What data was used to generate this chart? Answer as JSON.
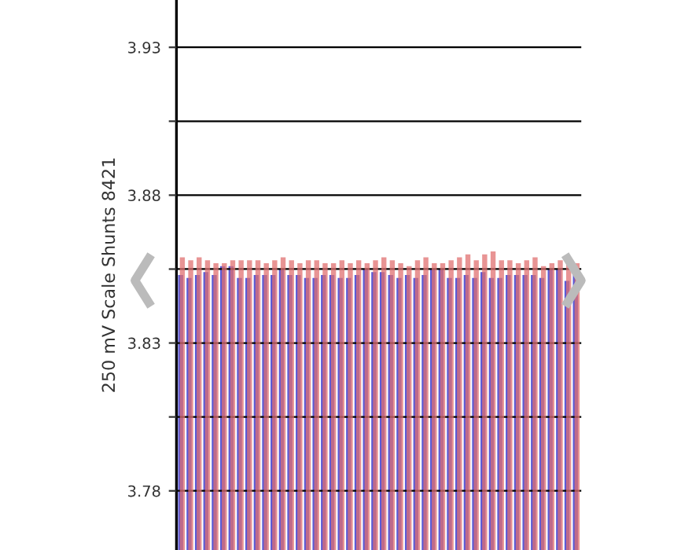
{
  "chart_data": {
    "type": "bar",
    "ylabel": "250 mV Scale Shunts 8421",
    "categories": [
      null,
      null,
      null,
      null,
      null,
      null,
      null,
      null,
      null,
      null,
      null,
      null,
      null,
      null,
      null,
      null,
      null,
      null,
      null,
      null,
      null,
      null,
      null,
      null,
      null,
      null,
      null,
      null,
      null,
      null,
      null,
      null,
      null,
      null,
      null,
      null,
      null,
      null,
      null,
      null,
      null,
      null,
      null,
      null,
      null,
      null,
      null,
      null
    ],
    "series": [
      {
        "color": "#5a5ad6",
        "values": [
          3.853,
          3.852,
          3.853,
          3.854,
          3.853,
          3.856,
          3.856,
          3.852,
          3.852,
          3.853,
          3.853,
          3.853,
          3.855,
          3.853,
          3.853,
          3.852,
          3.852,
          3.853,
          3.853,
          3.852,
          3.852,
          3.853,
          3.855,
          3.854,
          3.854,
          3.853,
          3.852,
          3.853,
          3.852,
          3.853,
          3.855,
          3.855,
          3.852,
          3.852,
          3.853,
          3.852,
          3.854,
          3.852,
          3.852,
          3.853,
          3.853,
          3.853,
          3.853,
          3.852,
          3.855,
          3.855,
          3.851,
          3.854
        ]
      },
      {
        "color": "#e07070",
        "values": [
          3.859,
          3.858,
          3.859,
          3.858,
          3.857,
          3.857,
          3.858,
          3.858,
          3.858,
          3.858,
          3.857,
          3.858,
          3.859,
          3.858,
          3.857,
          3.858,
          3.858,
          3.857,
          3.857,
          3.858,
          3.857,
          3.858,
          3.857,
          3.858,
          3.859,
          3.858,
          3.857,
          3.856,
          3.858,
          3.859,
          3.857,
          3.857,
          3.858,
          3.859,
          3.86,
          3.858,
          3.86,
          3.861,
          3.858,
          3.858,
          3.857,
          3.858,
          3.859,
          3.856,
          3.857,
          3.858,
          3.857,
          3.857
        ]
      }
    ],
    "ylim": [
      3.76,
      3.946
    ],
    "yticks": [
      3.78,
      {
        "value": 3.805,
        "label": null
      },
      3.83,
      {
        "value": 3.855,
        "label": null
      },
      3.88,
      {
        "value": 3.905,
        "label": null
      },
      3.93
    ],
    "grid": "y",
    "tick_labels": "y",
    "legend": false
  }
}
